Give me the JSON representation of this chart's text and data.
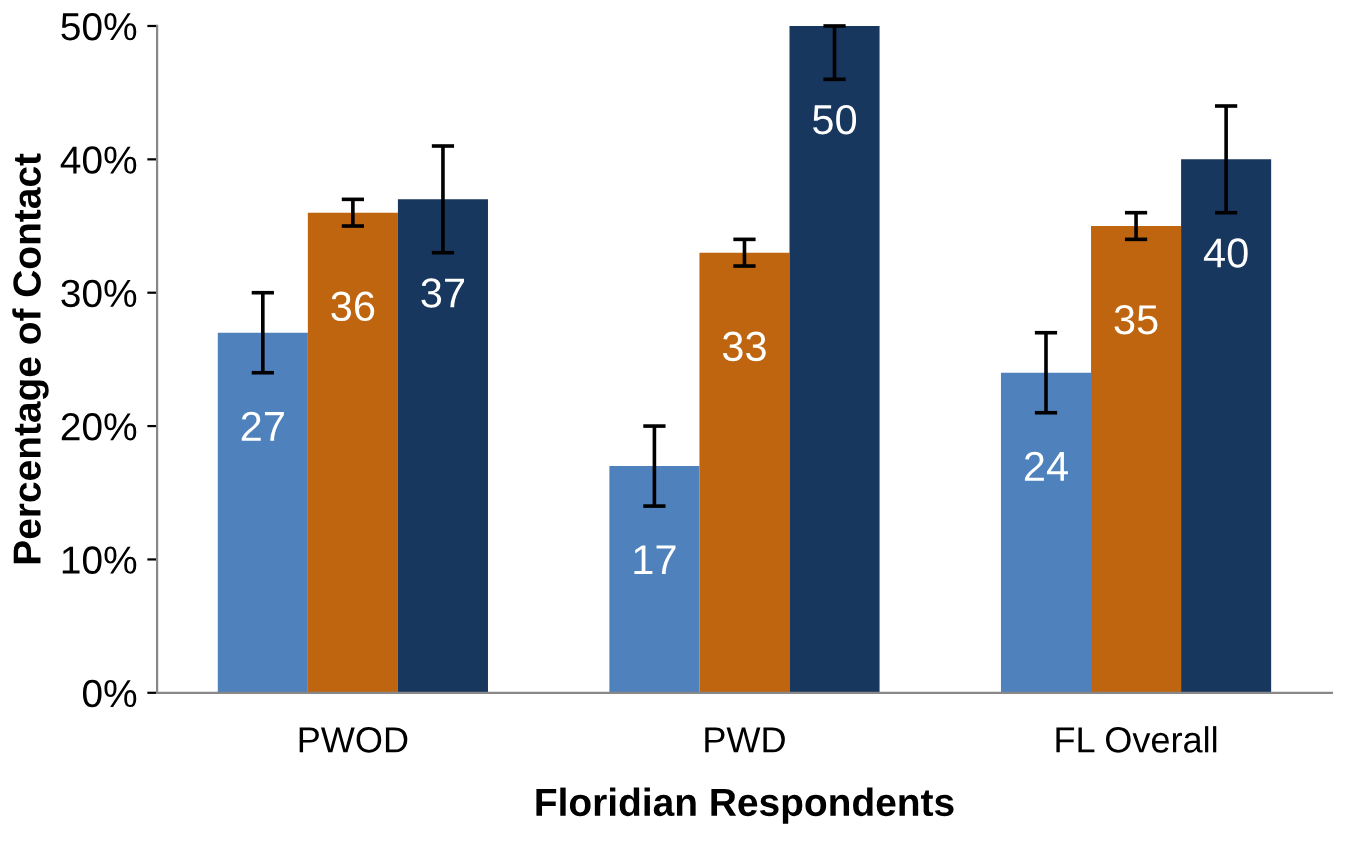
{
  "chart_data": {
    "type": "bar",
    "xlabel": "Floridian Respondents",
    "ylabel": "Percentage of Contact",
    "categories": [
      "PWOD",
      "PWD",
      "FL Overall"
    ],
    "series": [
      {
        "color": "#4f81bd",
        "values": [
          27,
          17,
          24
        ],
        "errors": [
          3,
          3,
          3
        ]
      },
      {
        "color": "#c0650f",
        "values": [
          36,
          33,
          35
        ],
        "errors": [
          1,
          1,
          1
        ]
      },
      {
        "color": "#17375e",
        "values": [
          37,
          50,
          40
        ],
        "errors": [
          4,
          [
            46,
            50
          ],
          4
        ]
      }
    ],
    "ylim": [
      0,
      50
    ],
    "yticks": [
      {
        "value": 0,
        "label": "0%"
      },
      {
        "value": 10,
        "label": "10%"
      },
      {
        "value": 20,
        "label": "20%"
      },
      {
        "value": 30,
        "label": "30%"
      },
      {
        "value": 40,
        "label": "40%"
      },
      {
        "value": 50,
        "label": "50%"
      }
    ],
    "data_labels": true,
    "grid": false,
    "legend": false
  }
}
